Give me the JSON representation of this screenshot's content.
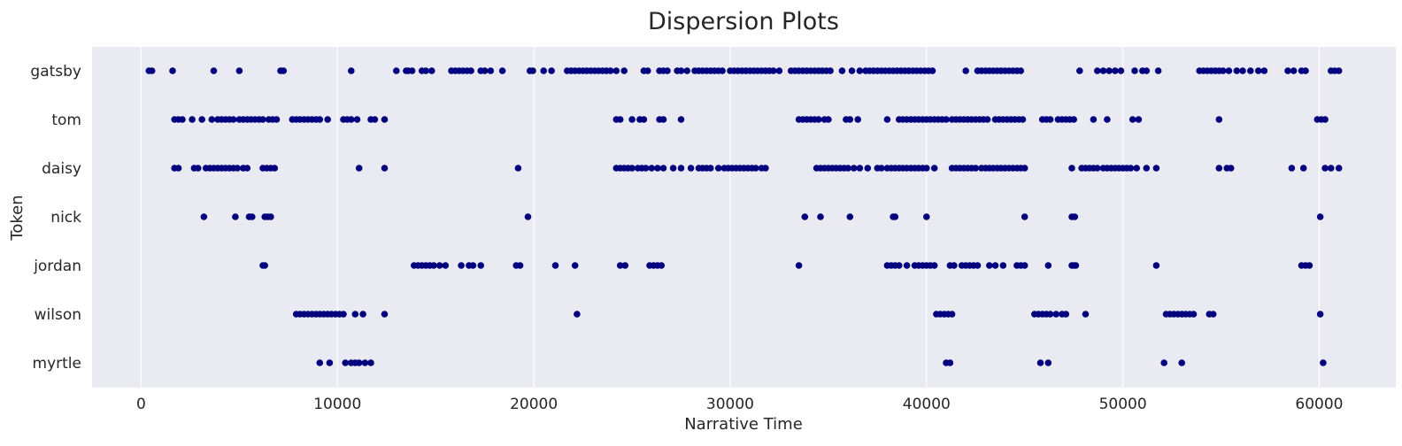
{
  "chart_data": {
    "type": "scatter",
    "title": "Dispersion Plots",
    "xlabel": "Narrative Time",
    "ylabel": "Token",
    "xlim": [
      -2500,
      63900
    ],
    "xticks": [
      0,
      10000,
      20000,
      30000,
      40000,
      50000,
      60000
    ],
    "grid": true,
    "legend": "none",
    "colors": {
      "background": "#eaeaf2",
      "marker": "#00007f",
      "grid": "#ffffff"
    },
    "categories": [
      "gatsby",
      "tom",
      "daisy",
      "nick",
      "jordan",
      "wilson",
      "myrtle"
    ],
    "series": [
      {
        "token": "gatsby",
        "x": [
          400,
          550,
          1600,
          3700,
          5000,
          7100,
          7250,
          10700,
          13000,
          13500,
          13600,
          13800,
          14300,
          14500,
          14800,
          15800,
          16000,
          16200,
          16400,
          16600,
          16800,
          17300,
          17500,
          17800,
          18400,
          19800,
          19950,
          20500,
          20900,
          21700,
          21900,
          22100,
          22300,
          22500,
          22700,
          22900,
          23100,
          23300,
          23500,
          23700,
          23900,
          24200,
          24600,
          25600,
          25800,
          26400,
          26600,
          26800,
          27300,
          27500,
          27800,
          28200,
          28400,
          28600,
          28800,
          29000,
          29200,
          29400,
          29600,
          30000,
          30200,
          30400,
          30600,
          30800,
          31000,
          31200,
          31400,
          31600,
          31800,
          32000,
          32200,
          32500,
          33100,
          33300,
          33500,
          33700,
          33900,
          34100,
          34300,
          34500,
          34700,
          34900,
          35100,
          35700,
          36200,
          36600,
          36900,
          37100,
          37300,
          37500,
          37700,
          37900,
          38100,
          38300,
          38500,
          38700,
          38900,
          39100,
          39300,
          39500,
          39700,
          39900,
          40100,
          40300,
          42000,
          42600,
          42800,
          43000,
          43200,
          43400,
          43600,
          43800,
          44000,
          44200,
          44400,
          44600,
          44800,
          47800,
          48700,
          49000,
          49300,
          49600,
          49900,
          50600,
          51000,
          51200,
          51800,
          53900,
          54100,
          54300,
          54500,
          54700,
          54900,
          55100,
          55400,
          55800,
          56100,
          56500,
          56900,
          57200,
          58400,
          58700,
          59100,
          59300,
          60600,
          60800,
          61000
        ]
      },
      {
        "token": "tom",
        "x": [
          1700,
          1900,
          2100,
          2600,
          3100,
          3600,
          3900,
          4100,
          4300,
          4500,
          4700,
          5000,
          5200,
          5400,
          5600,
          5800,
          6000,
          6200,
          6500,
          6700,
          6900,
          7700,
          7900,
          8100,
          8300,
          8500,
          8700,
          8900,
          9100,
          9500,
          10300,
          10500,
          10700,
          11000,
          11700,
          11900,
          12400,
          24200,
          24400,
          25000,
          25400,
          25600,
          26400,
          26600,
          27500,
          33500,
          33700,
          33900,
          34100,
          34300,
          34500,
          34800,
          35000,
          35900,
          36100,
          36500,
          38000,
          38600,
          38800,
          39000,
          39200,
          39400,
          39600,
          39800,
          40000,
          40200,
          40400,
          40600,
          40800,
          41000,
          41300,
          41500,
          41700,
          41900,
          42100,
          42300,
          42500,
          42700,
          42900,
          43100,
          43500,
          43700,
          43900,
          44100,
          44300,
          44500,
          44700,
          44900,
          45900,
          46100,
          46300,
          46700,
          46900,
          47100,
          47300,
          47500,
          48500,
          49200,
          50500,
          50800,
          54900,
          59900,
          60100,
          60300
        ]
      },
      {
        "token": "daisy",
        "x": [
          1700,
          1900,
          2700,
          2900,
          3300,
          3500,
          3700,
          3900,
          4100,
          4300,
          4500,
          4700,
          4900,
          5200,
          5400,
          6200,
          6400,
          6600,
          6800,
          11100,
          12400,
          19200,
          24200,
          24400,
          24600,
          24800,
          25000,
          25300,
          25500,
          25700,
          26000,
          26300,
          26600,
          27100,
          27500,
          28000,
          28400,
          28600,
          28800,
          29000,
          29400,
          29700,
          29900,
          30100,
          30300,
          30500,
          30700,
          30900,
          31100,
          31300,
          31600,
          31800,
          34400,
          34600,
          34800,
          35000,
          35200,
          35400,
          35600,
          35800,
          36000,
          36300,
          36600,
          37000,
          37500,
          37700,
          38000,
          38200,
          38400,
          38600,
          38800,
          39000,
          39200,
          39400,
          39600,
          39800,
          40000,
          40400,
          41300,
          41500,
          41700,
          41900,
          42100,
          42300,
          42500,
          42800,
          43000,
          43200,
          43400,
          43600,
          43800,
          44000,
          44200,
          44400,
          44600,
          44800,
          45000,
          47400,
          47900,
          48100,
          48300,
          48500,
          48700,
          49000,
          49200,
          49400,
          49600,
          49800,
          50000,
          50200,
          50400,
          50700,
          51200,
          51700,
          54900,
          55300,
          55500,
          58600,
          59200,
          60300,
          60600,
          61000
        ]
      },
      {
        "token": "nick",
        "x": [
          3200,
          4800,
          5500,
          5650,
          6300,
          6450,
          6600,
          19700,
          33800,
          34600,
          36100,
          38300,
          38400,
          40000,
          45000,
          47400,
          47550,
          60050
        ]
      },
      {
        "token": "jordan",
        "x": [
          6200,
          6300,
          13900,
          14100,
          14300,
          14500,
          14700,
          14900,
          15200,
          15500,
          16300,
          16700,
          16900,
          17300,
          19100,
          19300,
          21100,
          22100,
          24400,
          24650,
          25900,
          26100,
          26300,
          26500,
          33500,
          38000,
          38200,
          38400,
          38600,
          39000,
          39400,
          39600,
          39800,
          40000,
          40200,
          40400,
          41200,
          41400,
          41800,
          42000,
          42200,
          42400,
          42600,
          43200,
          43500,
          43900,
          44600,
          44800,
          45000,
          46200,
          47400,
          47500,
          47600,
          51700,
          59100,
          59300,
          59500
        ]
      },
      {
        "token": "wilson",
        "x": [
          7900,
          8100,
          8300,
          8500,
          8700,
          8900,
          9100,
          9300,
          9500,
          9700,
          9900,
          10100,
          10300,
          10900,
          11300,
          12400,
          22200,
          40500,
          40700,
          40900,
          41100,
          41300,
          45500,
          45700,
          45900,
          46100,
          46300,
          46600,
          46900,
          47100,
          48100,
          52200,
          52400,
          52600,
          52800,
          53000,
          53200,
          53400,
          53600,
          54400,
          54600,
          60050
        ]
      },
      {
        "token": "myrtle",
        "x": [
          9100,
          9600,
          10400,
          10700,
          10900,
          11100,
          11400,
          11700,
          41000,
          41200,
          45800,
          46200,
          52100,
          53000,
          60200
        ]
      }
    ]
  }
}
